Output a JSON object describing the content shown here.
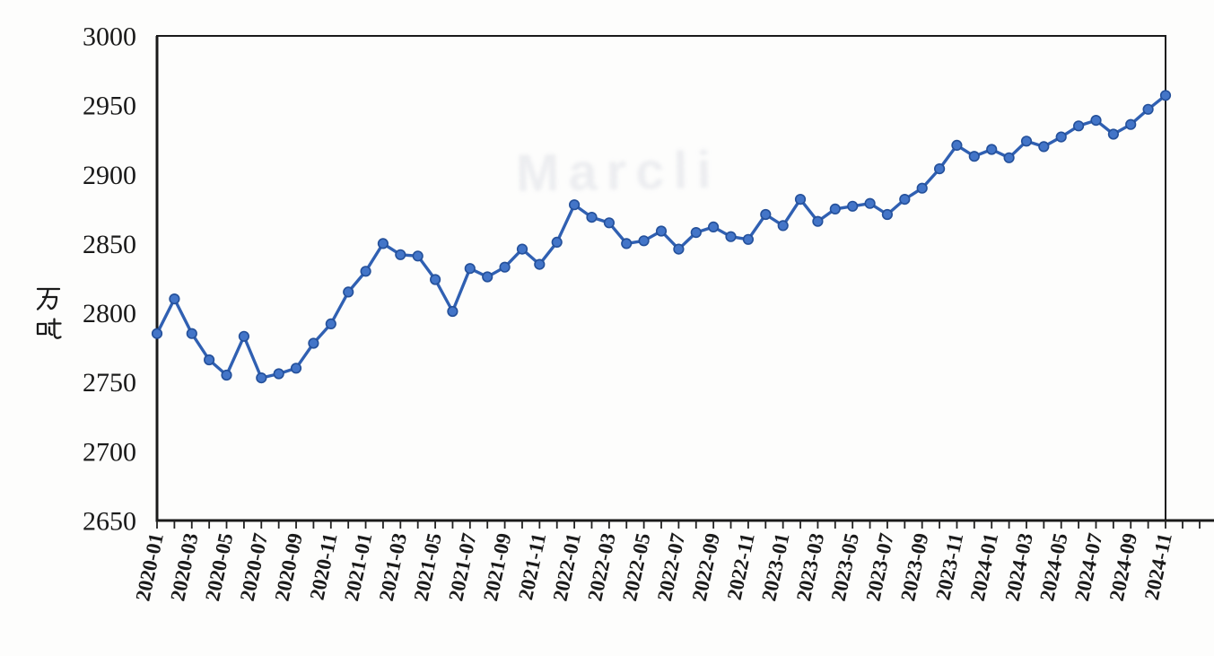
{
  "chart_data": {
    "type": "line",
    "title": "",
    "ylabel": "万吨",
    "x": [
      "2020-01",
      "2020-02",
      "2020-03",
      "2020-04",
      "2020-05",
      "2020-06",
      "2020-07",
      "2020-08",
      "2020-09",
      "2020-10",
      "2020-11",
      "2020-12",
      "2021-01",
      "2021-02",
      "2021-03",
      "2021-04",
      "2021-05",
      "2021-06",
      "2021-07",
      "2021-08",
      "2021-09",
      "2021-10",
      "2021-11",
      "2021-12",
      "2022-01",
      "2022-02",
      "2022-03",
      "2022-04",
      "2022-05",
      "2022-06",
      "2022-07",
      "2022-08",
      "2022-09",
      "2022-10",
      "2022-11",
      "2022-12",
      "2023-01",
      "2023-02",
      "2023-03",
      "2023-04",
      "2023-05",
      "2023-06",
      "2023-07",
      "2023-08",
      "2023-09",
      "2023-10",
      "2023-11",
      "2023-12",
      "2024-01",
      "2024-02",
      "2024-03",
      "2024-04",
      "2024-05",
      "2024-06",
      "2024-07",
      "2024-08",
      "2024-09",
      "2024-10",
      "2024-11"
    ],
    "values": [
      2785,
      2810,
      2785,
      2766,
      2755,
      2783,
      2753,
      2756,
      2760,
      2778,
      2792,
      2815,
      2830,
      2850,
      2842,
      2841,
      2824,
      2801,
      2832,
      2826,
      2833,
      2846,
      2835,
      2851,
      2878,
      2869,
      2865,
      2850,
      2852,
      2859,
      2846,
      2858,
      2862,
      2855,
      2853,
      2871,
      2863,
      2882,
      2866,
      2875,
      2877,
      2879,
      2871,
      2882,
      2890,
      2904,
      2921,
      2913,
      2918,
      2912,
      2924,
      2920,
      2927,
      2935,
      2939,
      2929,
      2936,
      2947,
      2957
    ],
    "ylim": [
      2650,
      3000
    ],
    "yticks": [
      "3000",
      "2950",
      "2900",
      "2850",
      "2800",
      "2750",
      "2700",
      "2650"
    ],
    "ytick_values": [
      3000,
      2950,
      2900,
      2850,
      2800,
      2750,
      2700,
      2650
    ],
    "x_tick_labels": [
      "2020-01",
      "2020-03",
      "2020-05",
      "2020-07",
      "2020-09",
      "2020-11",
      "2021-01",
      "2021-03",
      "2021-05",
      "2021-07",
      "2021-09",
      "2021-11",
      "2022-01",
      "2022-03",
      "2022-05",
      "2022-07",
      "2022-09",
      "2022-11",
      "2023-01",
      "2023-03",
      "2023-05",
      "2023-07",
      "2023-09",
      "2023-11",
      "2024-01",
      "2024-03",
      "2024-05",
      "2024-07",
      "2024-09",
      "2024-11"
    ],
    "x_label_every": 2,
    "grid": false,
    "legend": "none",
    "colors": {
      "line": "#3060B2",
      "marker_fill": "#4375C8",
      "marker_edge": "#24509A",
      "axis": "#1a1a1a",
      "text": "#1a1a1a"
    }
  },
  "artifacts": {
    "ghost_text": "Marcli"
  }
}
